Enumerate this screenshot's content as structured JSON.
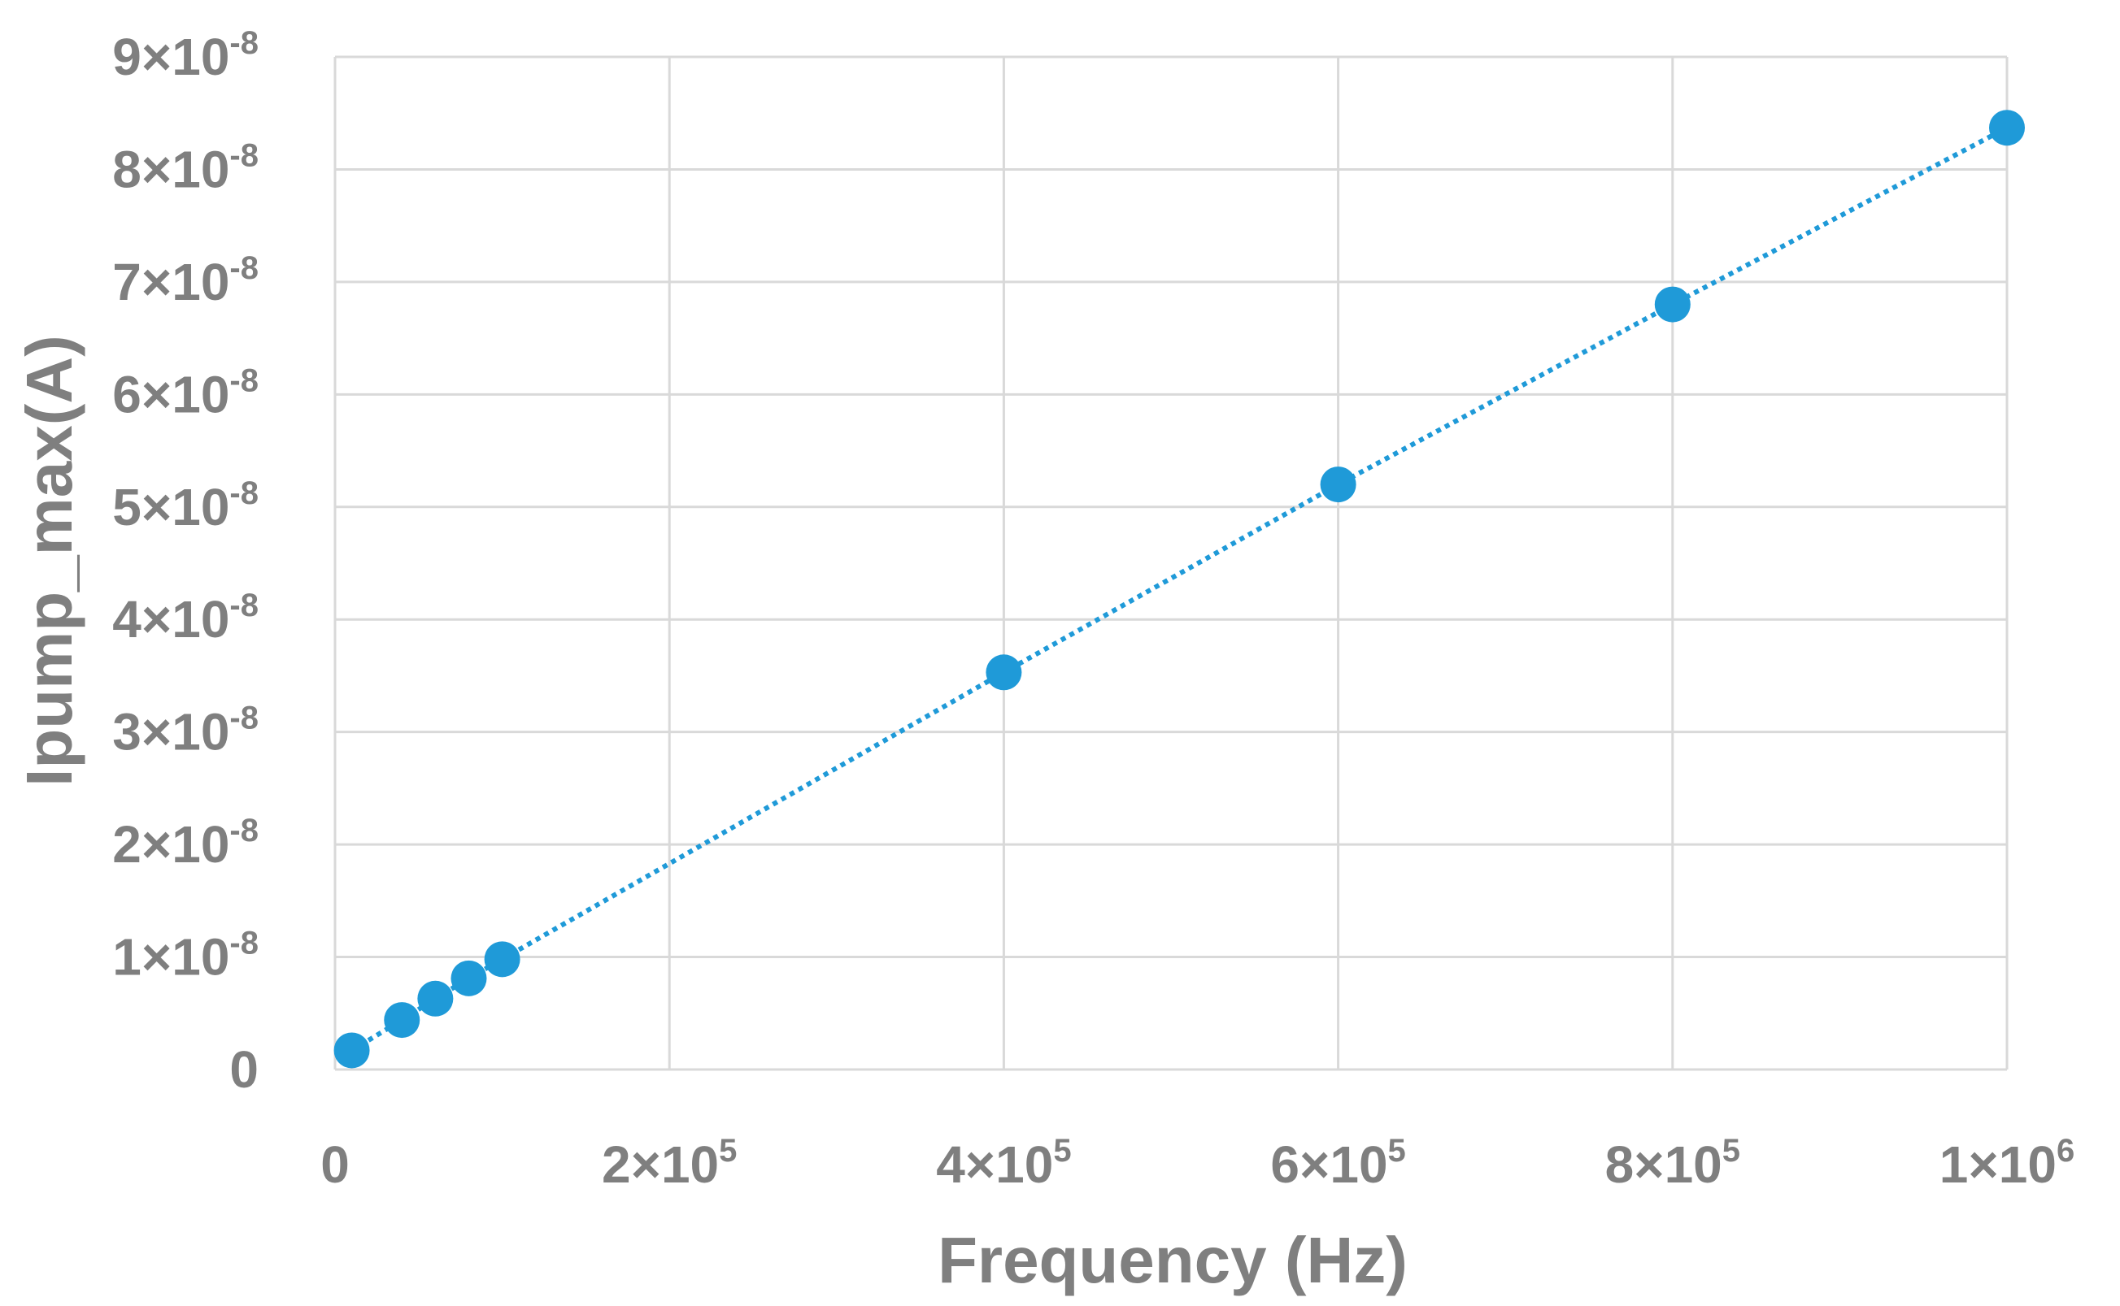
{
  "chart_data": {
    "type": "scatter",
    "xlabel": "Frequency (Hz)",
    "ylabel": "Ipump_max(A)",
    "xlim": [
      0,
      1000000
    ],
    "ylim": [
      0,
      9e-08
    ],
    "grid": true,
    "x_ticks": [
      {
        "value": 0,
        "mantissa": "0",
        "base": "",
        "exp": ""
      },
      {
        "value": 200000,
        "mantissa": "2",
        "base": "×10",
        "exp": "5"
      },
      {
        "value": 400000,
        "mantissa": "4",
        "base": "×10",
        "exp": "5"
      },
      {
        "value": 600000,
        "mantissa": "6",
        "base": "×10",
        "exp": "5"
      },
      {
        "value": 800000,
        "mantissa": "8",
        "base": "×10",
        "exp": "5"
      },
      {
        "value": 1000000,
        "mantissa": "1",
        "base": "×10",
        "exp": "6"
      }
    ],
    "y_ticks": [
      {
        "value": 0,
        "mantissa": "0",
        "base": "",
        "exp": ""
      },
      {
        "value": 1e-08,
        "mantissa": "1",
        "base": "×10",
        "exp": "-8"
      },
      {
        "value": 2e-08,
        "mantissa": "2",
        "base": "×10",
        "exp": "-8"
      },
      {
        "value": 3e-08,
        "mantissa": "3",
        "base": "×10",
        "exp": "-8"
      },
      {
        "value": 4e-08,
        "mantissa": "4",
        "base": "×10",
        "exp": "-8"
      },
      {
        "value": 5e-08,
        "mantissa": "5",
        "base": "×10",
        "exp": "-8"
      },
      {
        "value": 6e-08,
        "mantissa": "6",
        "base": "×10",
        "exp": "-8"
      },
      {
        "value": 7e-08,
        "mantissa": "7",
        "base": "×10",
        "exp": "-8"
      },
      {
        "value": 8e-08,
        "mantissa": "8",
        "base": "×10",
        "exp": "-8"
      },
      {
        "value": 9e-08,
        "mantissa": "9",
        "base": "×10",
        "exp": "-8"
      }
    ],
    "series": [
      {
        "color": "#1f9ad8",
        "marker": "circle",
        "line_style": "dotted",
        "x": [
          10000,
          40000,
          60000,
          80000,
          100000,
          400000,
          600000,
          800000,
          1000000
        ],
        "y": [
          1.7e-09,
          4.4e-09,
          6.3e-09,
          8.1e-09,
          9.8e-09,
          3.53e-08,
          5.2e-08,
          6.8e-08,
          8.37e-08
        ]
      }
    ]
  }
}
